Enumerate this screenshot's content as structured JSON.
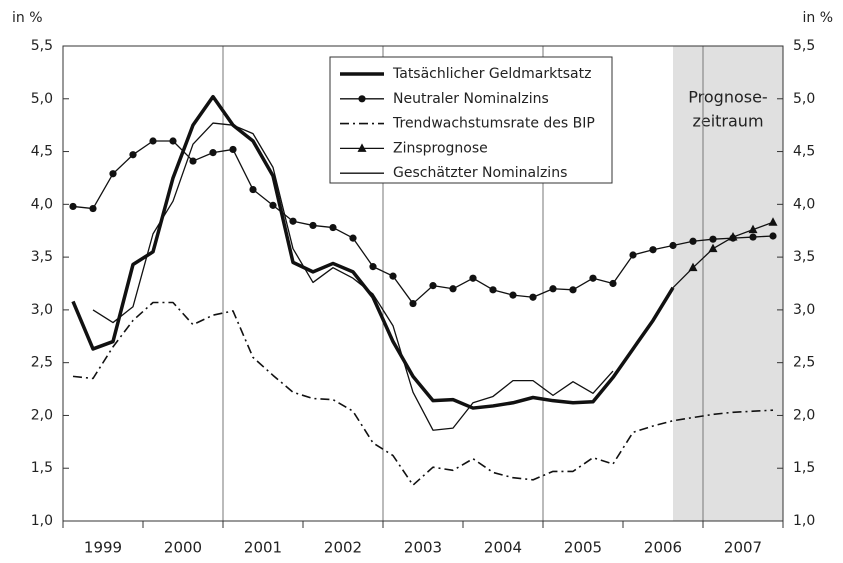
{
  "chart_data": {
    "type": "line",
    "ylabel": "in %",
    "y2label": "in %",
    "xlim": [
      1999,
      2008
    ],
    "x": [
      1999.125,
      1999.375,
      1999.625,
      1999.875,
      2000.125,
      2000.375,
      2000.625,
      2000.875,
      2001.125,
      2001.375,
      2001.625,
      2001.875,
      2002.125,
      2002.375,
      2002.625,
      2002.875,
      2003.125,
      2003.375,
      2003.625,
      2003.875,
      2004.125,
      2004.375,
      2004.625,
      2004.875,
      2005.125,
      2005.375,
      2005.625,
      2005.875,
      2006.125,
      2006.375,
      2006.625,
      2006.875,
      2007.125,
      2007.375,
      2007.625,
      2007.875
    ],
    "xticks": [
      {
        "value": 1999.5,
        "label": "1999"
      },
      {
        "value": 2000.5,
        "label": "2000"
      },
      {
        "value": 2001.5,
        "label": "2001"
      },
      {
        "value": 2002.5,
        "label": "2002"
      },
      {
        "value": 2003.5,
        "label": "2003"
      },
      {
        "value": 2004.5,
        "label": "2004"
      },
      {
        "value": 2005.5,
        "label": "2005"
      },
      {
        "value": 2006.5,
        "label": "2006"
      },
      {
        "value": 2007.5,
        "label": "2007"
      }
    ],
    "xgrid": [
      2001,
      2003,
      2005,
      2007
    ],
    "ylim": [
      1,
      5.5
    ],
    "y2lim": [
      1,
      5.5
    ],
    "yticks": [
      {
        "value": 1,
        "label": "1,0"
      },
      {
        "value": 1.5,
        "label": "1,5"
      },
      {
        "value": 2,
        "label": "2,0"
      },
      {
        "value": 2.5,
        "label": "2,5"
      },
      {
        "value": 3,
        "label": "3,0"
      },
      {
        "value": 3.5,
        "label": "3,5"
      },
      {
        "value": 4,
        "label": "4,0"
      },
      {
        "value": 4.5,
        "label": "4,5"
      },
      {
        "value": 5,
        "label": "5,0"
      },
      {
        "value": 5.5,
        "label": "5,5"
      }
    ],
    "shade": [
      2006.625,
      2008
    ],
    "shade_color": "#e0e0e0",
    "annotation": [
      "Prognose-",
      "zeitraum"
    ],
    "legend": "top-center",
    "series": [
      {
        "name": "Tatsächlicher Geldmarktsatz",
        "color": "#111",
        "style": "thick",
        "values": [
          3.08,
          2.63,
          2.7,
          3.43,
          3.55,
          4.25,
          4.75,
          5.02,
          4.75,
          4.6,
          4.27,
          3.45,
          3.36,
          3.44,
          3.36,
          3.12,
          2.7,
          2.37,
          2.14,
          2.15,
          2.07,
          2.09,
          2.12,
          2.17,
          2.14,
          2.12,
          2.13,
          2.36,
          2.63,
          2.9,
          3.21,
          null,
          null,
          null,
          null,
          null
        ]
      },
      {
        "name": "Neutraler Nominalzins",
        "color": "#111",
        "style": "circle",
        "values": [
          3.98,
          3.96,
          4.29,
          4.47,
          4.6,
          4.6,
          4.41,
          4.49,
          4.52,
          4.14,
          3.99,
          3.84,
          3.8,
          3.78,
          3.68,
          3.41,
          3.32,
          3.06,
          3.23,
          3.2,
          3.3,
          3.19,
          3.14,
          3.12,
          3.2,
          3.19,
          3.3,
          3.25,
          3.52,
          3.57,
          3.61,
          3.65,
          3.67,
          3.68,
          3.69,
          3.7
        ]
      },
      {
        "name": "Trendwachstumsrate des BIP",
        "color": "#111",
        "style": "dashdot",
        "values": [
          2.37,
          2.35,
          2.65,
          2.9,
          3.07,
          3.07,
          2.86,
          2.95,
          2.99,
          2.55,
          2.38,
          2.22,
          2.16,
          2.15,
          2.04,
          1.74,
          1.62,
          1.34,
          1.51,
          1.48,
          1.59,
          1.46,
          1.41,
          1.39,
          1.47,
          1.47,
          1.6,
          1.54,
          1.84,
          1.9,
          1.95,
          1.98,
          2.01,
          2.03,
          2.04,
          2.05
        ]
      },
      {
        "name": "Zinsprognose",
        "color": "#111",
        "style": "triangle",
        "values": [
          null,
          null,
          null,
          null,
          null,
          null,
          null,
          null,
          null,
          null,
          null,
          null,
          null,
          null,
          null,
          null,
          null,
          null,
          null,
          null,
          null,
          null,
          null,
          null,
          null,
          null,
          null,
          null,
          null,
          null,
          3.21,
          3.4,
          3.58,
          3.69,
          3.76,
          3.83
        ]
      },
      {
        "name": "Geschätzter Nominalzins",
        "color": "#111",
        "style": "thin",
        "values": [
          null,
          3.0,
          2.88,
          3.03,
          3.72,
          4.03,
          4.57,
          4.77,
          4.75,
          4.67,
          4.35,
          3.58,
          3.26,
          3.4,
          3.3,
          3.15,
          2.85,
          2.22,
          1.86,
          1.88,
          2.12,
          2.18,
          2.33,
          2.33,
          2.19,
          2.32,
          2.21,
          2.42,
          null,
          null,
          null,
          null,
          null,
          null,
          null,
          null
        ]
      }
    ]
  }
}
